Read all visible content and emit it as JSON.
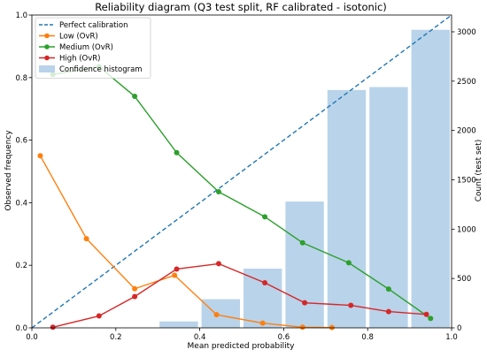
{
  "chart_data": {
    "type": "line",
    "title": "Reliability diagram (Q3 test split, RF calibrated - isotonic)",
    "xlabel": "Mean predicted probability",
    "ylabel": "Observed frequency",
    "y2label": "Count (test set)",
    "xlim": [
      0,
      1
    ],
    "ylim": [
      0,
      1
    ],
    "y2lim": [
      0,
      3170
    ],
    "xticks": [
      "0.0",
      "0.2",
      "0.4",
      "0.6",
      "0.8",
      "1.0"
    ],
    "yticks": [
      "0.0",
      "0.2",
      "0.4",
      "0.6",
      "0.8",
      "1.0"
    ],
    "y2ticks": [
      "0",
      "500",
      "1000",
      "1500",
      "2000",
      "2500",
      "3000"
    ],
    "grid": false,
    "legend_position": "top-left",
    "reference_line": {
      "name": "Perfect calibration",
      "x": [
        0,
        1
      ],
      "y": [
        0,
        1
      ],
      "color": "#1f77b4",
      "style": "dashed"
    },
    "series": [
      {
        "name": "Low (OvR)",
        "color": "#ff7f0e",
        "x": [
          0.02,
          0.13,
          0.245,
          0.34,
          0.44,
          0.55,
          0.645,
          0.715
        ],
        "y": [
          0.55,
          0.285,
          0.125,
          0.168,
          0.042,
          0.015,
          0.002,
          0.001
        ]
      },
      {
        "name": "Medium (OvR)",
        "color": "#2ca02c",
        "x": [
          0.05,
          0.16,
          0.245,
          0.345,
          0.445,
          0.555,
          0.645,
          0.755,
          0.85,
          0.95
        ],
        "y": [
          0.81,
          0.835,
          0.74,
          0.56,
          0.435,
          0.355,
          0.272,
          0.208,
          0.124,
          0.03
        ]
      },
      {
        "name": "High (OvR)",
        "color": "#d62728",
        "x": [
          0.05,
          0.16,
          0.245,
          0.345,
          0.445,
          0.555,
          0.65,
          0.76,
          0.85,
          0.94
        ],
        "y": [
          0.002,
          0.038,
          0.1,
          0.188,
          0.205,
          0.144,
          0.08,
          0.072,
          0.052,
          0.043
        ]
      }
    ],
    "histogram": {
      "name": "Confidence histogram",
      "color": "#b9d3ea",
      "bin_edges": [
        0.3,
        0.4,
        0.5,
        0.6,
        0.7,
        0.8,
        0.9,
        1.0
      ],
      "counts": [
        65,
        290,
        600,
        1280,
        2410,
        2440,
        3020
      ]
    }
  }
}
